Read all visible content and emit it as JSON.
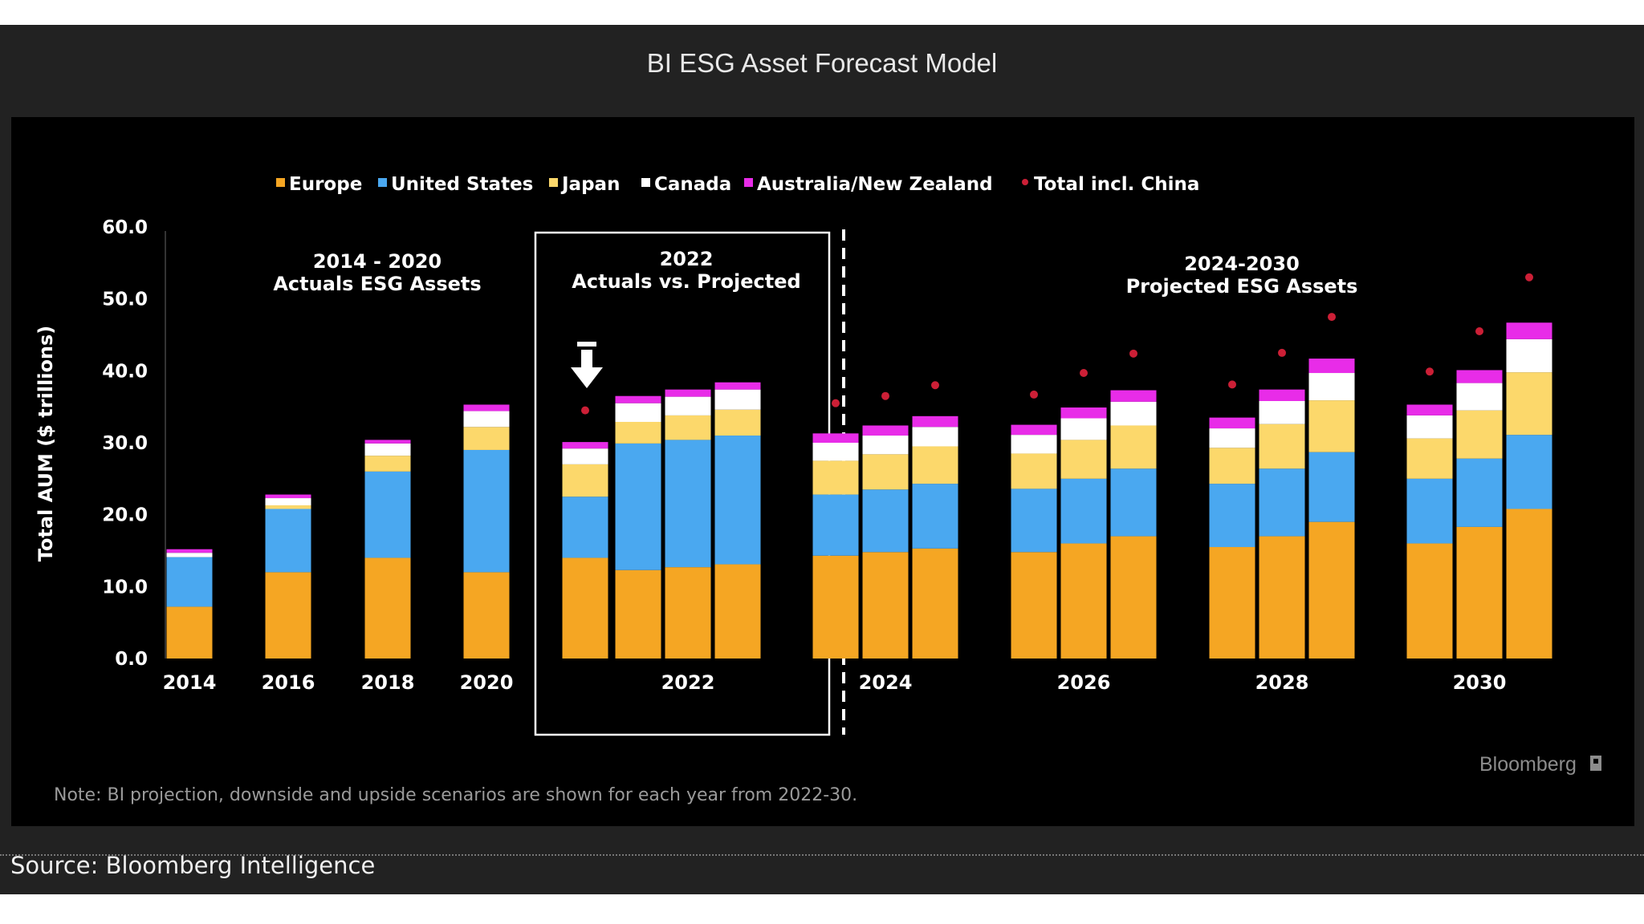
{
  "page": {
    "title": "BI ESG Asset Forecast Model",
    "source": "Source: Bloomberg Intelligence"
  },
  "chart_data": {
    "type": "bar",
    "stacked": true,
    "ylabel": "Total AUM ($ trillions)",
    "ylim": [
      0,
      60
    ],
    "yticks": [
      "0.0",
      "10.0",
      "20.0",
      "30.0",
      "40.0",
      "50.0",
      "60.0"
    ],
    "legend_position": "top",
    "series": [
      {
        "name": "Europe",
        "color": "#f5a623"
      },
      {
        "name": "United States",
        "color": "#4aa8f0"
      },
      {
        "name": "Japan",
        "color": "#fcd86b"
      },
      {
        "name": "Canada",
        "color": "#ffffff"
      },
      {
        "name": "Australia/New Zealand",
        "color": "#e82ce8"
      }
    ],
    "marker": {
      "name": "Total incl. China",
      "color": "#cc1f36"
    },
    "groups": [
      {
        "label": "2014",
        "bars": [
          [
            7.2,
            6.9,
            0,
            0.6,
            0.5
          ]
        ]
      },
      {
        "label": "2016",
        "bars": [
          [
            12.0,
            8.8,
            0.5,
            1.0,
            0.5
          ]
        ]
      },
      {
        "label": "2018",
        "bars": [
          [
            14.0,
            12.0,
            2.2,
            1.7,
            0.5
          ]
        ]
      },
      {
        "label": "2020",
        "bars": [
          [
            12.0,
            17.0,
            3.2,
            2.2,
            0.9
          ]
        ],
        "markers": []
      },
      {
        "label": "",
        "bars": [
          [
            14.0,
            8.5,
            4.5,
            2.2,
            0.9
          ]
        ],
        "markers": [
          34.5
        ]
      },
      {
        "label": "2022",
        "bars": [
          [
            12.3,
            17.6,
            3.0,
            2.6,
            1.0
          ],
          [
            12.7,
            17.7,
            3.4,
            2.6,
            1.0
          ],
          [
            13.1,
            17.9,
            3.6,
            2.8,
            1.0
          ]
        ]
      },
      {
        "label": "2024",
        "bars": [
          [
            14.3,
            8.5,
            4.7,
            2.5,
            1.3
          ],
          [
            14.8,
            8.7,
            4.9,
            2.6,
            1.4
          ],
          [
            15.3,
            9.0,
            5.2,
            2.7,
            1.5
          ]
        ],
        "markers": [
          35.5,
          36.5,
          38.0
        ]
      },
      {
        "label": "2026",
        "bars": [
          [
            14.8,
            8.8,
            4.9,
            2.6,
            1.4
          ],
          [
            16.0,
            9.0,
            5.4,
            3.0,
            1.5
          ],
          [
            17.0,
            9.4,
            6.0,
            3.3,
            1.6
          ]
        ],
        "markers": [
          36.7,
          39.7,
          42.4
        ]
      },
      {
        "label": "2028",
        "bars": [
          [
            15.5,
            8.8,
            5.0,
            2.7,
            1.5
          ],
          [
            17.0,
            9.4,
            6.2,
            3.2,
            1.6
          ],
          [
            19.0,
            9.7,
            7.2,
            3.8,
            2.0
          ]
        ],
        "markers": [
          38.1,
          42.5,
          47.5
        ]
      },
      {
        "label": "2030",
        "bars": [
          [
            16.0,
            9.0,
            5.6,
            3.2,
            1.5
          ],
          [
            18.3,
            9.5,
            6.7,
            3.8,
            1.8
          ],
          [
            20.8,
            10.3,
            8.7,
            4.6,
            2.3
          ]
        ],
        "markers": [
          39.9,
          45.5,
          53.0
        ]
      }
    ],
    "annotations": {
      "actuals": [
        "2014 - 2020",
        "Actuals ESG Assets"
      ],
      "compare": [
        "2022",
        "Actuals vs. Projected"
      ],
      "projected": [
        "2024-2030",
        "Projected ESG Assets"
      ]
    },
    "note": "Note: BI projection, downside and upside scenarios are shown for each year from 2022-30.",
    "brand": "Bloomberg"
  }
}
